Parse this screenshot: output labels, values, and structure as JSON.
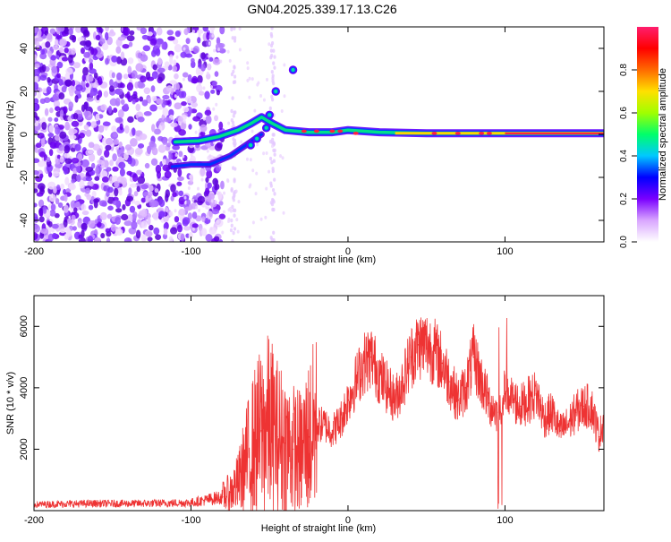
{
  "title": "GN04.2025.339.17.13.C26",
  "chart_data": [
    {
      "type": "heatmap",
      "xlabel": "Height of straight line (km)",
      "ylabel": "Frequency (Hz)",
      "xlim": [
        -200,
        163
      ],
      "ylim": [
        -50,
        50
      ],
      "x_ticks": [
        -200,
        -100,
        0,
        100
      ],
      "x_tick_labels": [
        "-200",
        "-100",
        "0",
        "100"
      ],
      "y_ticks": [
        -40,
        -20,
        0,
        20,
        40
      ],
      "y_tick_labels": [
        "-40",
        "-20",
        "0",
        "20",
        "40"
      ],
      "colorbar": {
        "label": "Normalized spectral amplitude",
        "range": [
          0,
          1
        ],
        "ticks": [
          0,
          0.2,
          0.4,
          0.6,
          0.8
        ],
        "tick_labels": [
          "0.0",
          "0.2",
          "0.4",
          "0.6",
          "0.8"
        ],
        "colormap": [
          "#ffffff",
          "#d9a6ff",
          "#7a00ff",
          "#0000ff",
          "#00c8ff",
          "#00ff6a",
          "#a0ff00",
          "#ffe000",
          "#ff6a00",
          "#ff0000",
          "#ff1e6e"
        ]
      },
      "tone_track": [
        {
          "x": -110,
          "y": -3.5
        },
        {
          "x": -95,
          "y": -3
        },
        {
          "x": -82,
          "y": -1
        },
        {
          "x": -70,
          "y": 2
        },
        {
          "x": -62,
          "y": 5
        },
        {
          "x": -55,
          "y": 8
        },
        {
          "x": -48,
          "y": 5
        },
        {
          "x": -40,
          "y": 2
        },
        {
          "x": -25,
          "y": 1
        },
        {
          "x": -10,
          "y": 1
        },
        {
          "x": 0,
          "y": 2
        },
        {
          "x": 20,
          "y": 1
        },
        {
          "x": 50,
          "y": 0.5
        },
        {
          "x": 90,
          "y": 0.5
        },
        {
          "x": 100,
          "y": 0.5
        },
        {
          "x": 163,
          "y": 0.5
        }
      ],
      "secondary_track": [
        {
          "x": -112,
          "y": -15
        },
        {
          "x": -100,
          "y": -14
        },
        {
          "x": -88,
          "y": -14
        },
        {
          "x": -75,
          "y": -10
        },
        {
          "x": -65,
          "y": -5
        },
        {
          "x": -55,
          "y": 0
        }
      ]
    },
    {
      "type": "line",
      "xlabel": "Height of straight line (km)",
      "ylabel": "SNR (10 * v/v)",
      "xlim": [
        -200,
        163
      ],
      "ylim": [
        0,
        7000
      ],
      "x_ticks": [
        -200,
        -100,
        0,
        100
      ],
      "x_tick_labels": [
        "-200",
        "-100",
        "0",
        "100"
      ],
      "y_ticks": [
        2000,
        4000,
        6000
      ],
      "y_tick_labels": [
        "2000",
        "4000",
        "6000"
      ],
      "series": [
        {
          "color": "#ee3333",
          "x": [
            -200,
            -180,
            -160,
            -140,
            -120,
            -100,
            -90,
            -80,
            -75,
            -70,
            -65,
            -60,
            -55,
            -50,
            -45,
            -40,
            -35,
            -30,
            -25,
            -20,
            -15,
            -10,
            -5,
            0,
            5,
            10,
            15,
            20,
            25,
            30,
            35,
            40,
            45,
            50,
            55,
            60,
            65,
            70,
            75,
            80,
            85,
            90,
            95,
            100,
            105,
            110,
            115,
            120,
            125,
            130,
            135,
            140,
            145,
            150,
            155,
            160,
            163
          ],
          "values": [
            200,
            220,
            230,
            230,
            240,
            260,
            350,
            450,
            600,
            900,
            1600,
            2200,
            2600,
            2800,
            2400,
            2200,
            2000,
            1900,
            2400,
            2800,
            2800,
            2600,
            2900,
            3600,
            4200,
            4800,
            5000,
            4400,
            4000,
            3600,
            4200,
            5000,
            5400,
            5400,
            5200,
            4800,
            4200,
            3600,
            4000,
            5000,
            4200,
            3500,
            3200,
            3800,
            3600,
            3400,
            3600,
            3800,
            3000,
            3200,
            2600,
            2800,
            3200,
            3400,
            3400,
            2400,
            3000
          ]
        }
      ]
    }
  ]
}
